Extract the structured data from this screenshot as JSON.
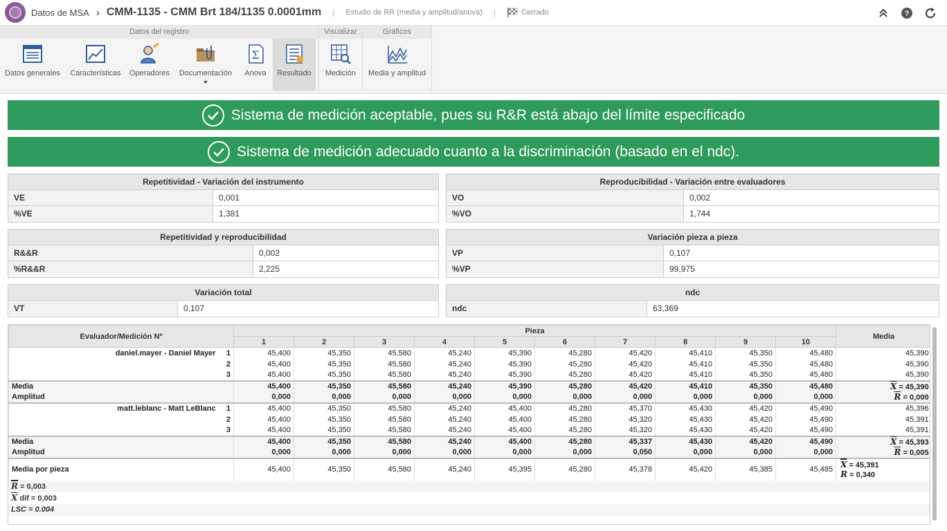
{
  "header": {
    "root": "Datos de MSA",
    "title": "CMM-1135 - CMM Brt 184/1135 0.0001mm",
    "study_type": "Estudio de RR (media y amplitud/anova)",
    "status": "Cerrado"
  },
  "ribbon": {
    "groups": [
      {
        "title": "Datos del registro"
      },
      {
        "title": "Visualizar"
      },
      {
        "title": "Gráficos"
      }
    ],
    "items": {
      "general": "Datos generales",
      "features": "Características",
      "operators": "Operadores",
      "documentation": "Documentación",
      "anova": "Anova",
      "result": "Resultado",
      "measurement": "Medición",
      "mean_range": "Media y amplitud"
    }
  },
  "banners": [
    "Sistema de medición aceptable, pues su R&R está abajo del límite especificado",
    "Sistema de medición adecuado cuanto a la discriminación (basado en el ndc)."
  ],
  "panels": {
    "repeat": {
      "title": "Repetitividad - Variación del instrumento",
      "rows": [
        [
          "VE",
          "0,001"
        ],
        [
          "%VE",
          "1,381"
        ]
      ]
    },
    "reprod": {
      "title": "Reproducibilidad - Variación entre evaluadores",
      "rows": [
        [
          "VO",
          "0,002"
        ],
        [
          "%VO",
          "1,744"
        ]
      ]
    },
    "rr": {
      "title": "Repetitividad y reproducibilidad",
      "rows": [
        [
          "R&&R",
          "0,002"
        ],
        [
          "%R&&R",
          "2,225"
        ]
      ]
    },
    "part": {
      "title": "Variación pieza a pieza",
      "rows": [
        [
          "VP",
          "0,107"
        ],
        [
          "%VP",
          "99,975"
        ]
      ]
    },
    "total": {
      "title": "Variación total",
      "rows": [
        [
          "VT",
          "0,107"
        ]
      ]
    },
    "ndc": {
      "title": "ndc",
      "rows": [
        [
          "ndc",
          "63,369"
        ]
      ]
    }
  },
  "grid": {
    "h_evaluator": "Evaluador/Medición Nº",
    "h_piece": "Pieza",
    "h_mean": "Media",
    "pieces": [
      "1",
      "2",
      "3",
      "4",
      "5",
      "6",
      "7",
      "8",
      "9",
      "10"
    ],
    "evaluators": [
      {
        "name": "daniel.mayer - Daniel Mayer",
        "rows": [
          {
            "n": "1",
            "v": [
              "45,400",
              "45,350",
              "45,580",
              "45,240",
              "45,390",
              "45,280",
              "45,420",
              "45,410",
              "45,350",
              "45,480"
            ],
            "m": "45,390"
          },
          {
            "n": "2",
            "v": [
              "45,400",
              "45,350",
              "45,580",
              "45,240",
              "45,390",
              "45,280",
              "45,420",
              "45,410",
              "45,350",
              "45,480"
            ],
            "m": "45,390"
          },
          {
            "n": "3",
            "v": [
              "45,400",
              "45,350",
              "45,580",
              "45,240",
              "45,390",
              "45,280",
              "45,420",
              "45,410",
              "45,350",
              "45,480"
            ],
            "m": "45,390"
          }
        ],
        "media_label": "Media",
        "media": [
          "45,400",
          "45,350",
          "45,580",
          "45,240",
          "45,390",
          "45,280",
          "45,420",
          "45,410",
          "45,350",
          "45,480"
        ],
        "xbar_label": "X",
        "xbar": "= 45,390",
        "amp_label": "Amplitud",
        "amp": [
          "0,000",
          "0,000",
          "0,000",
          "0,000",
          "0,000",
          "0,000",
          "0,000",
          "0,000",
          "0,000",
          "0,000"
        ],
        "rbar_label": "R",
        "rbar": "= 0,000"
      },
      {
        "name": "matt.leblanc - Matt LeBlanc",
        "rows": [
          {
            "n": "1",
            "v": [
              "45,400",
              "45,350",
              "45,580",
              "45,240",
              "45,400",
              "45,280",
              "45,370",
              "45,430",
              "45,420",
              "45,490"
            ],
            "m": "45,396"
          },
          {
            "n": "2",
            "v": [
              "45,400",
              "45,350",
              "45,580",
              "45,240",
              "45,400",
              "45,280",
              "45,320",
              "45,430",
              "45,420",
              "45,490"
            ],
            "m": "45,391"
          },
          {
            "n": "3",
            "v": [
              "45,400",
              "45,350",
              "45,580",
              "45,240",
              "45,400",
              "45,280",
              "45,320",
              "45,430",
              "45,420",
              "45,490"
            ],
            "m": "45,391"
          }
        ],
        "media_label": "Media",
        "media": [
          "45,400",
          "45,350",
          "45,580",
          "45,240",
          "45,400",
          "45,280",
          "45,337",
          "45,430",
          "45,420",
          "45,490"
        ],
        "xbar_label": "X",
        "xbar": "= 45,393",
        "amp_label": "Amplitud",
        "amp": [
          "0,000",
          "0,000",
          "0,000",
          "0,000",
          "0,000",
          "0,000",
          "0,050",
          "0,000",
          "0,000",
          "0,000"
        ],
        "rbar_label": "R",
        "rbar": "= 0,005"
      }
    ],
    "per_piece_label": "Media por pieza",
    "per_piece": [
      "45,400",
      "45,350",
      "45,580",
      "45,240",
      "45,395",
      "45,280",
      "45,378",
      "45,420",
      "45,385",
      "45,485"
    ],
    "xbarbar": "= 45,391",
    "rp": "= 0,340",
    "footer": [
      {
        "sym": "R",
        "text": "= 0,003"
      },
      {
        "sym": "X",
        "text": "dif = 0,003"
      },
      {
        "sym": "",
        "text": "LSC = 0.004"
      }
    ]
  }
}
